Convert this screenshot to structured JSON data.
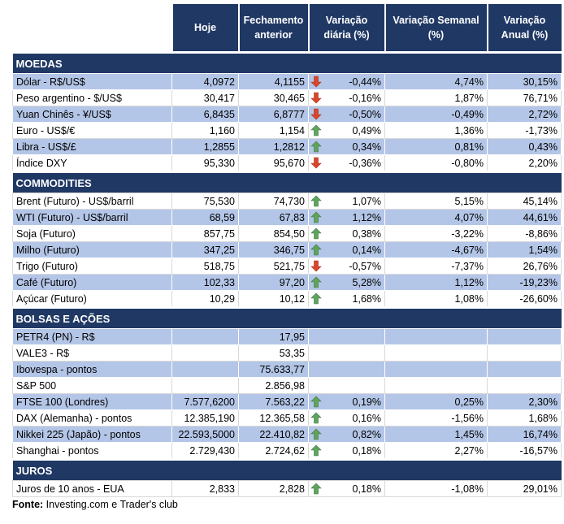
{
  "header": {
    "columns": [
      "Hoje",
      "Fechamento anterior",
      "Variação diária (%)",
      "Variação Semanal (%)",
      "Variação Anual (%)"
    ]
  },
  "sections": [
    {
      "title": "MOEDAS",
      "rows": [
        {
          "cells": [
            "Dólar - R$/US$",
            "4,0972",
            "4,1155",
            "-0,44%",
            "4,74%",
            "30,15%"
          ],
          "arrow": "down"
        },
        {
          "cells": [
            "Peso argentino - $/US$",
            "30,417",
            "30,465",
            "-0,16%",
            "1,87%",
            "76,71%"
          ],
          "arrow": "down"
        },
        {
          "cells": [
            "Yuan Chinês - ¥/US$",
            "6,8435",
            "6,8777",
            "-0,50%",
            "-0,49%",
            "2,72%"
          ],
          "arrow": "down"
        },
        {
          "cells": [
            "Euro - US$/€",
            "1,160",
            "1,154",
            "0,49%",
            "1,36%",
            "-1,73%"
          ],
          "arrow": "up"
        },
        {
          "cells": [
            "Libra - US$/£",
            "1,2855",
            "1,2812",
            "0,34%",
            "0,81%",
            "0,43%"
          ],
          "arrow": "up"
        },
        {
          "cells": [
            "Índice DXY",
            "95,330",
            "95,670",
            "-0,36%",
            "-0,80%",
            "2,20%"
          ],
          "arrow": "down"
        }
      ]
    },
    {
      "title": "COMMODITIES",
      "rows": [
        {
          "cells": [
            "Brent (Futuro) - US$/barril",
            "75,530",
            "74,730",
            "1,07%",
            "5,15%",
            "45,14%"
          ],
          "arrow": "up"
        },
        {
          "cells": [
            "WTI (Futuro) - US$/barril",
            "68,59",
            "67,83",
            "1,12%",
            "4,07%",
            "44,61%"
          ],
          "arrow": "up"
        },
        {
          "cells": [
            "Soja (Futuro)",
            "857,75",
            "854,50",
            "0,38%",
            "-3,22%",
            "-8,86%"
          ],
          "arrow": "up"
        },
        {
          "cells": [
            "Milho (Futuro)",
            "347,25",
            "346,75",
            "0,14%",
            "-4,67%",
            "1,54%"
          ],
          "arrow": "up"
        },
        {
          "cells": [
            "Trigo (Futuro)",
            "518,75",
            "521,75",
            "-0,57%",
            "-7,37%",
            "26,76%"
          ],
          "arrow": "down"
        },
        {
          "cells": [
            "Café (Futuro)",
            "102,33",
            "97,20",
            "5,28%",
            "1,12%",
            "-19,23%"
          ],
          "arrow": "up"
        },
        {
          "cells": [
            "Açúcar (Futuro)",
            "10,29",
            "10,12",
            "1,68%",
            "1,08%",
            "-26,60%"
          ],
          "arrow": "up"
        }
      ]
    },
    {
      "title": "BOLSAS E AÇÕES",
      "rows": [
        {
          "cells": [
            "PETR4 (PN) - R$",
            null,
            "17,95",
            null,
            null,
            null
          ]
        },
        {
          "cells": [
            "VALE3 - R$",
            null,
            "53,35",
            null,
            null,
            null
          ]
        },
        {
          "cells": [
            "Ibovespa - pontos",
            null,
            "75.633,77",
            null,
            null,
            null
          ]
        },
        {
          "cells": [
            "S&P 500",
            null,
            "2.856,98",
            null,
            null,
            null
          ]
        },
        {
          "cells": [
            "FTSE 100 (Londres)",
            "7.577,6200",
            "7.563,22",
            "0,19%",
            "0,25%",
            "2,30%"
          ],
          "arrow": "up"
        },
        {
          "cells": [
            "DAX (Alemanha) - pontos",
            "12.385,190",
            "12.365,58",
            "0,16%",
            "-1,56%",
            "1,68%"
          ],
          "arrow": "up"
        },
        {
          "cells": [
            "Nikkei 225 (Japão) - pontos",
            "22.593,5000",
            "22.410,82",
            "0,82%",
            "1,45%",
            "16,74%"
          ],
          "arrow": "up"
        },
        {
          "cells": [
            "Shanghai - pontos",
            "2.729,430",
            "2.724,62",
            "0,18%",
            "2,27%",
            "-16,57%"
          ],
          "arrow": "up"
        }
      ]
    },
    {
      "title": "JUROS",
      "rows": [
        {
          "cells": [
            "Juros de 10 anos - EUA",
            "2,833",
            "2,828",
            "0,18%",
            "-1,08%",
            "29,01%"
          ],
          "arrow": "up"
        }
      ]
    }
  ],
  "footer": {
    "label": "Fonte:",
    "text": "Investing.com e Trader's club"
  }
}
